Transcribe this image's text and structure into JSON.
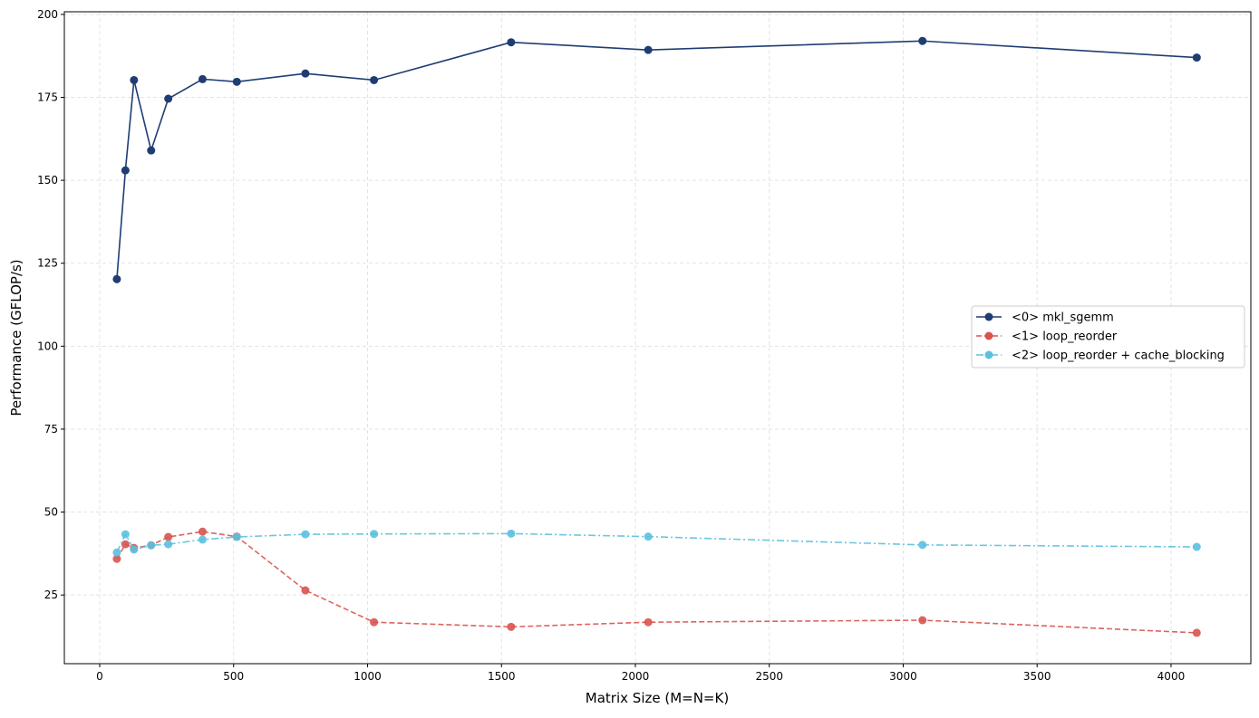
{
  "chart_data": {
    "type": "line",
    "title": "",
    "xlabel": "Matrix Size (M=N=K)",
    "ylabel": "Performance (GFLOP/s)",
    "xlim": [
      -132,
      4298
    ],
    "ylim": [
      4.3,
      200.8
    ],
    "xticks": [
      0,
      500,
      1000,
      1500,
      2000,
      2500,
      3000,
      3500,
      4000
    ],
    "yticks": [
      25,
      50,
      75,
      100,
      125,
      150,
      175,
      200
    ],
    "grid": true,
    "legend_position": "center-right",
    "x": [
      64,
      96,
      128,
      192,
      256,
      384,
      512,
      768,
      1024,
      1536,
      2048,
      3072,
      4096
    ],
    "series": [
      {
        "name": "<0> mkl_sgemm",
        "color": "#1f3d73",
        "linestyle": "solid",
        "values": [
          120.2,
          153.0,
          180.2,
          159.0,
          174.6,
          180.5,
          179.7,
          182.2,
          180.2,
          191.6,
          189.3,
          192.0,
          187.0
        ]
      },
      {
        "name": "<1> loop_reorder",
        "color": "#d9534f",
        "linestyle": "dashed",
        "values": [
          35.9,
          40.3,
          39.2,
          40.0,
          42.5,
          44.1,
          42.6,
          26.4,
          16.8,
          15.4,
          16.8,
          17.4,
          13.6
        ]
      },
      {
        "name": "<2> loop_reorder + cache_blocking",
        "color": "#5bc0de",
        "linestyle": "dashdot",
        "values": [
          37.8,
          43.3,
          38.7,
          40.0,
          40.3,
          41.7,
          42.5,
          43.3,
          43.4,
          43.5,
          42.6,
          40.1,
          39.5
        ]
      }
    ]
  }
}
